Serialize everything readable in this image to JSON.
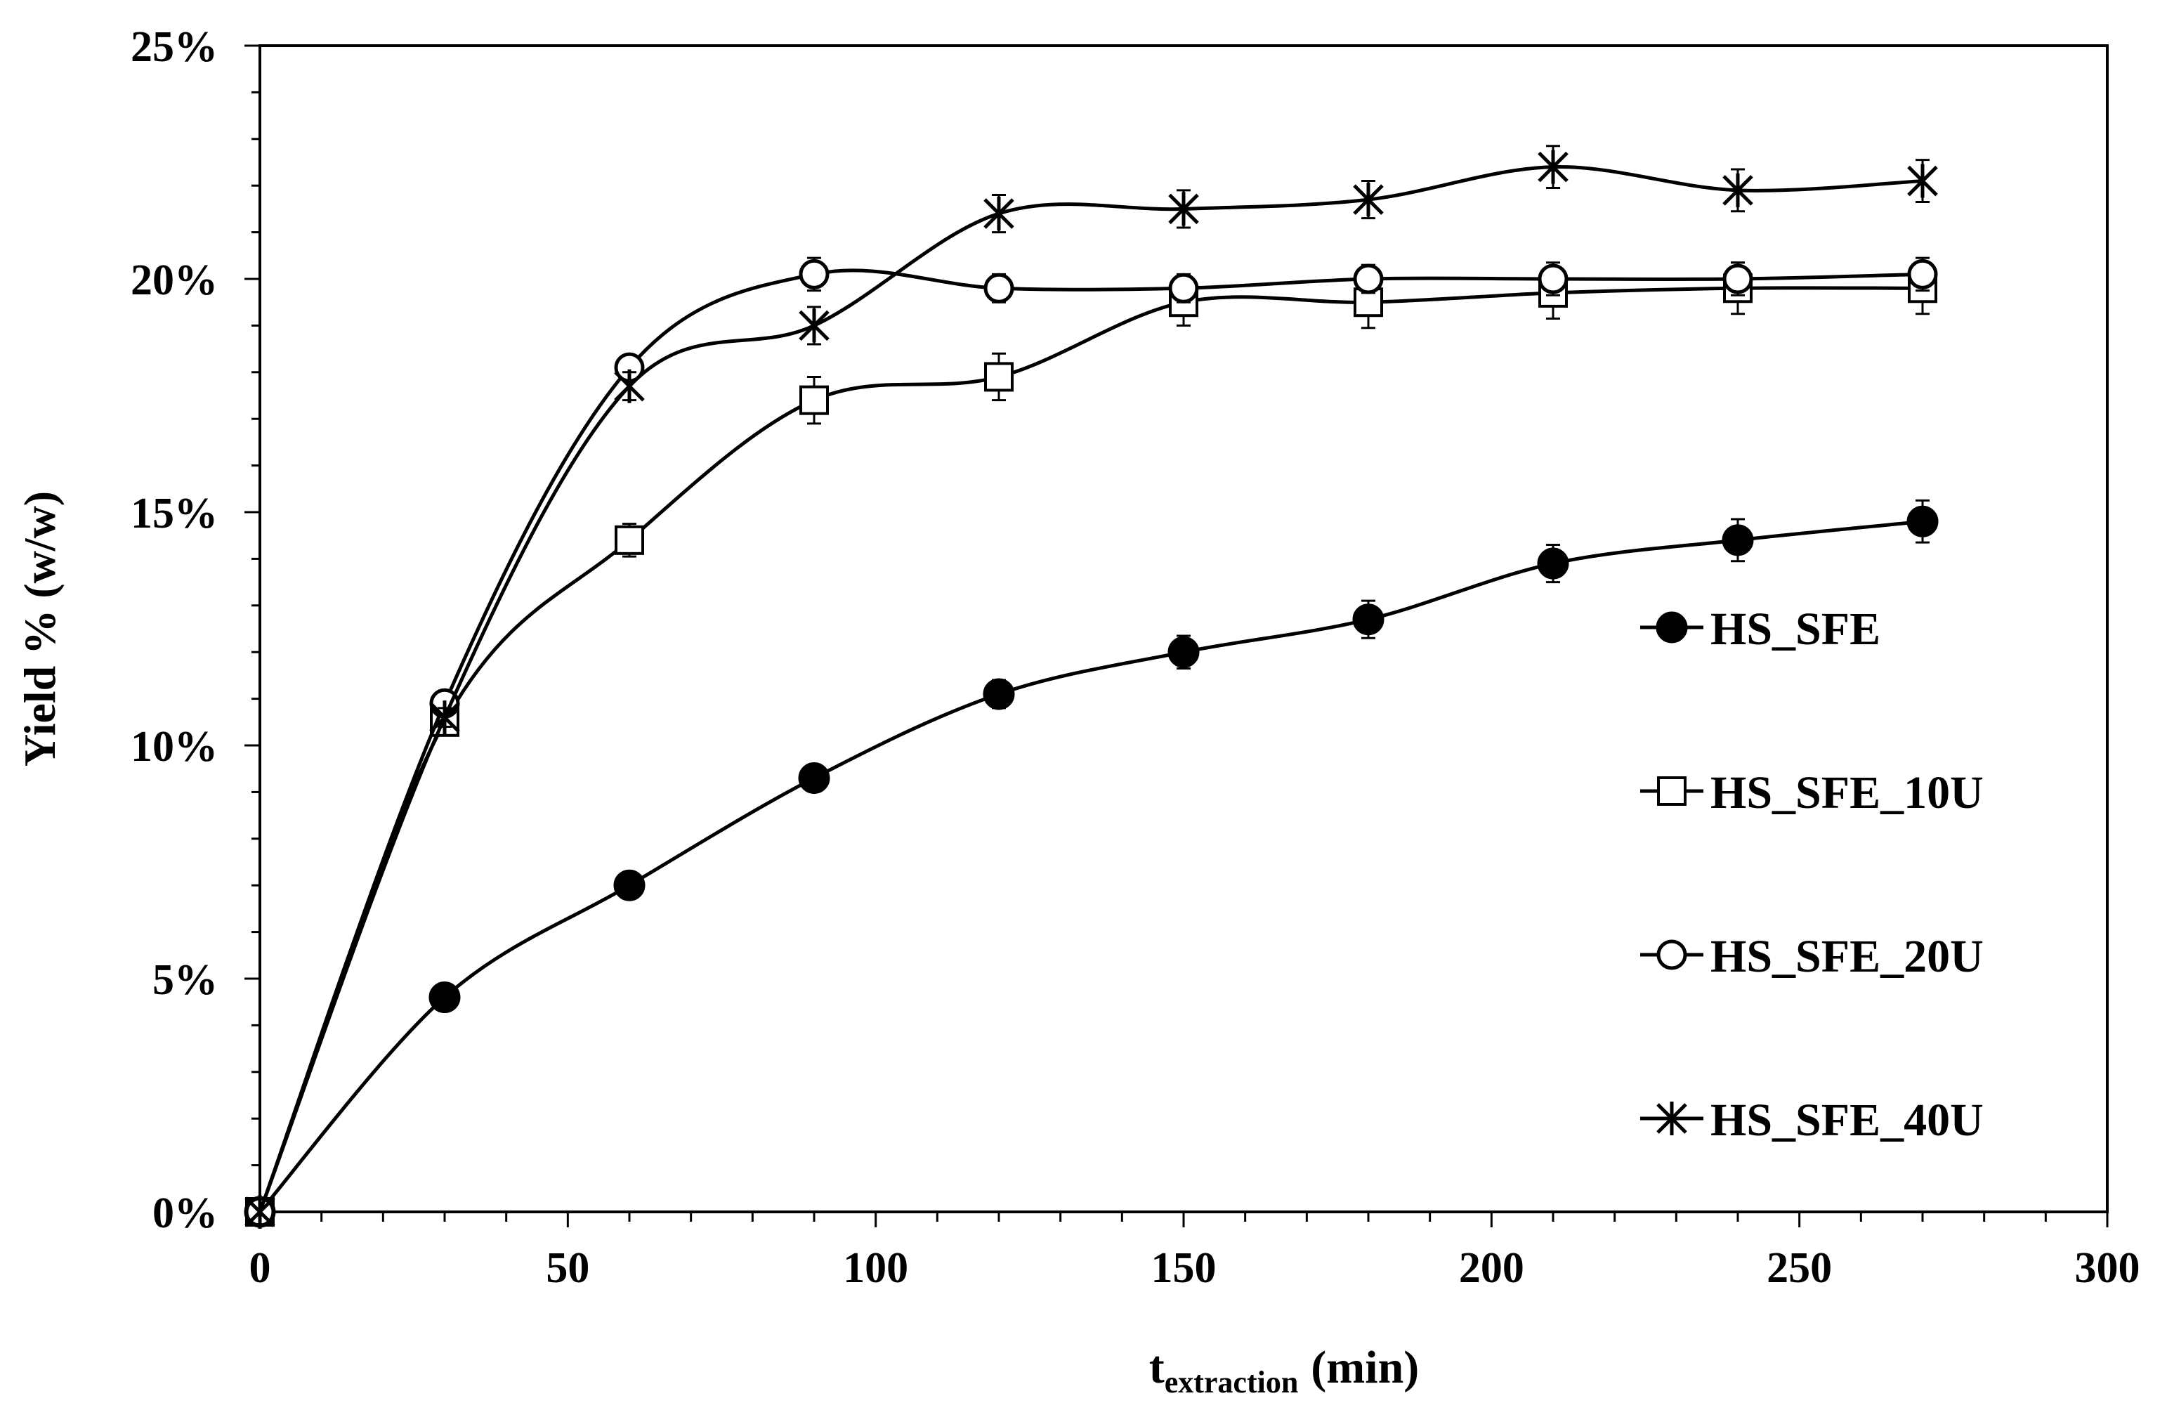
{
  "chart_data": {
    "type": "line",
    "title": "",
    "xlabel_main": "t",
    "xlabel_sub": "extraction",
    "xlabel_unit": "(min)",
    "ylabel": "Yield % (w/w)",
    "xlim": [
      0,
      300
    ],
    "ylim": [
      0,
      25
    ],
    "x_ticks": [
      0,
      50,
      100,
      150,
      200,
      250,
      300
    ],
    "x_tick_labels": [
      "0",
      "50",
      "100",
      "150",
      "200",
      "250",
      "300"
    ],
    "y_ticks": [
      0,
      5,
      10,
      15,
      20,
      25
    ],
    "y_tick_labels": [
      "0%",
      "5%",
      "10%",
      "15%",
      "20%",
      "25%"
    ],
    "grid": false,
    "legend_position": "right",
    "x": [
      0,
      30,
      60,
      90,
      120,
      150,
      180,
      210,
      240,
      270
    ],
    "series": [
      {
        "name": "HS_SFE",
        "marker": "filled-circle",
        "values": [
          0,
          4.6,
          7.0,
          9.3,
          11.1,
          12.0,
          12.7,
          13.9,
          14.4,
          14.8
        ],
        "errors": [
          0,
          0.2,
          0.2,
          0.2,
          0.3,
          0.35,
          0.4,
          0.4,
          0.45,
          0.45
        ]
      },
      {
        "name": "HS_SFE_10U",
        "marker": "open-square",
        "values": [
          0,
          10.5,
          14.4,
          17.4,
          17.9,
          19.5,
          19.5,
          19.7,
          19.8,
          19.8
        ],
        "errors": [
          0,
          0.2,
          0.35,
          0.5,
          0.5,
          0.5,
          0.55,
          0.55,
          0.55,
          0.55
        ]
      },
      {
        "name": "HS_SFE_20U",
        "marker": "open-circle",
        "values": [
          0,
          10.9,
          18.1,
          20.1,
          19.8,
          19.8,
          20.0,
          20.0,
          20.0,
          20.1
        ],
        "errors": [
          0,
          0.2,
          0.25,
          0.35,
          0.3,
          0.3,
          0.3,
          0.35,
          0.35,
          0.35
        ]
      },
      {
        "name": "HS_SFE_40U",
        "marker": "asterisk",
        "values": [
          0,
          10.6,
          17.7,
          19.0,
          21.4,
          21.5,
          21.7,
          22.4,
          21.9,
          22.1
        ],
        "errors": [
          0,
          0.2,
          0.3,
          0.4,
          0.4,
          0.4,
          0.4,
          0.45,
          0.45,
          0.45
        ]
      }
    ]
  }
}
